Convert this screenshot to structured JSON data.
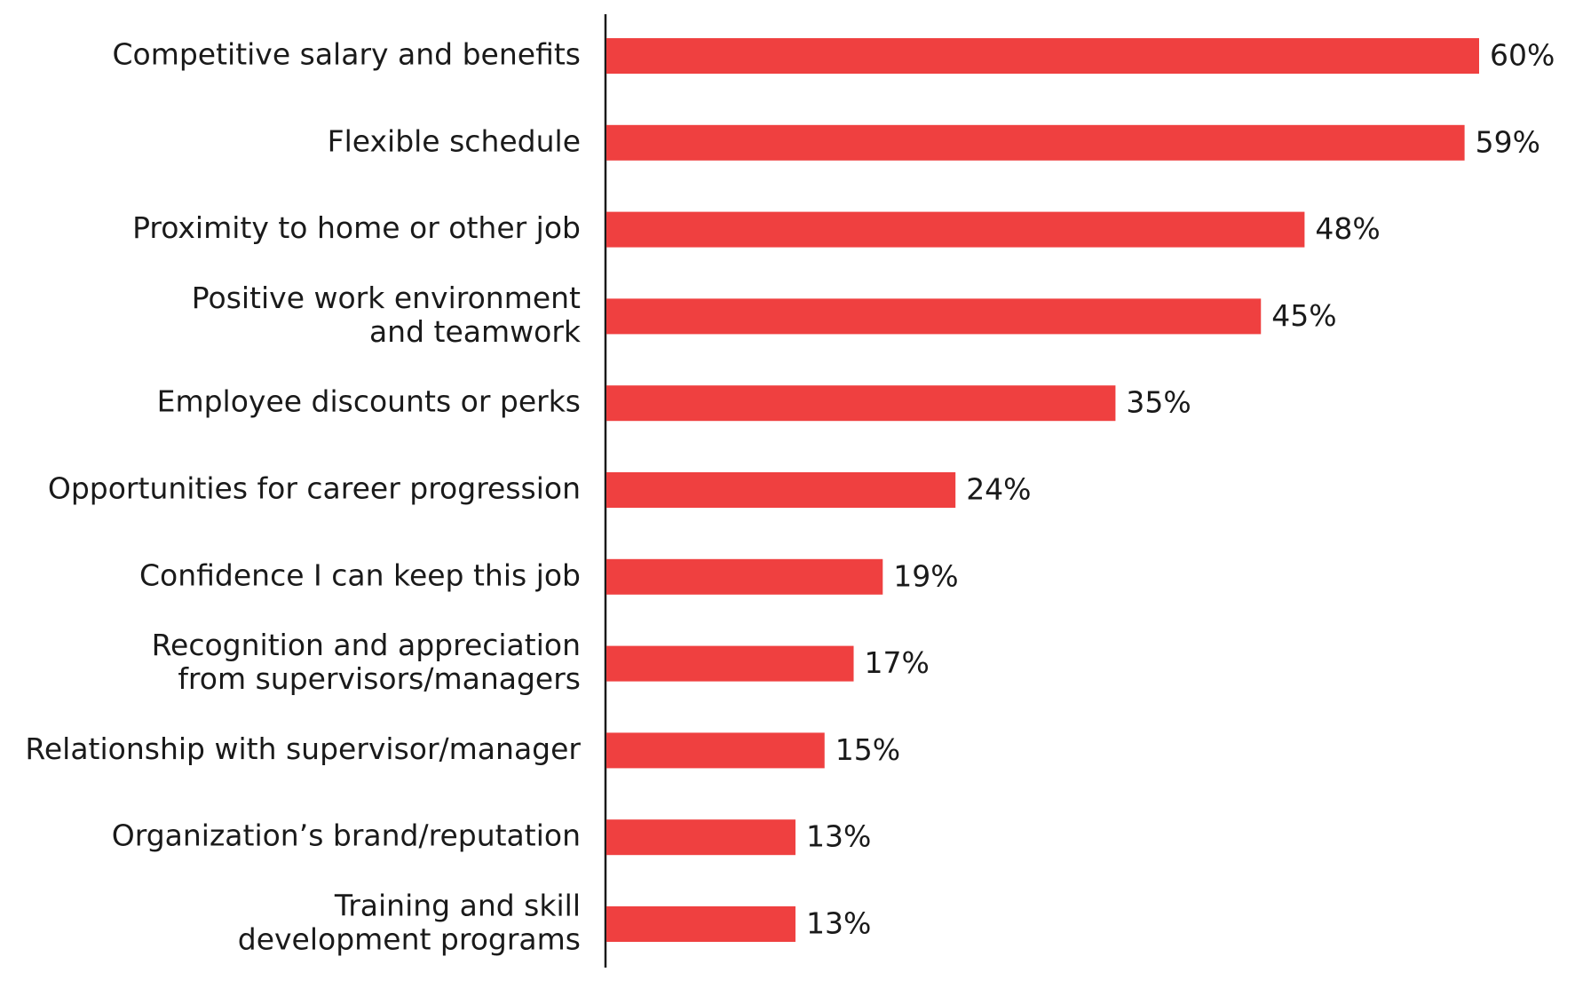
{
  "chart_data": {
    "type": "bar",
    "orientation": "horizontal",
    "title": "",
    "xlabel": "",
    "ylabel": "",
    "grid": false,
    "legend": "none",
    "bar_color": "#ef4040",
    "value_suffix": "%",
    "xlim": [
      0,
      60
    ],
    "categories": [
      "Competitive salary and benefits",
      "Flexible schedule",
      "Proximity to home or other job",
      "Positive work environment\nand teamwork",
      "Employee discounts or perks",
      "Opportunities for career progression",
      "Confidence I can keep this job",
      "Recognition and appreciation\nfrom supervisors/managers",
      "Relationship with supervisor/manager",
      "Organization’s brand/reputation",
      "Training and skill\ndevelopment programs"
    ],
    "values": [
      60,
      59,
      48,
      45,
      35,
      24,
      19,
      17,
      15,
      13,
      13
    ],
    "value_labels": [
      "60%",
      "59%",
      "48%",
      "45%",
      "35%",
      "24%",
      "19%",
      "17%",
      "15%",
      "13%",
      "13%"
    ]
  }
}
